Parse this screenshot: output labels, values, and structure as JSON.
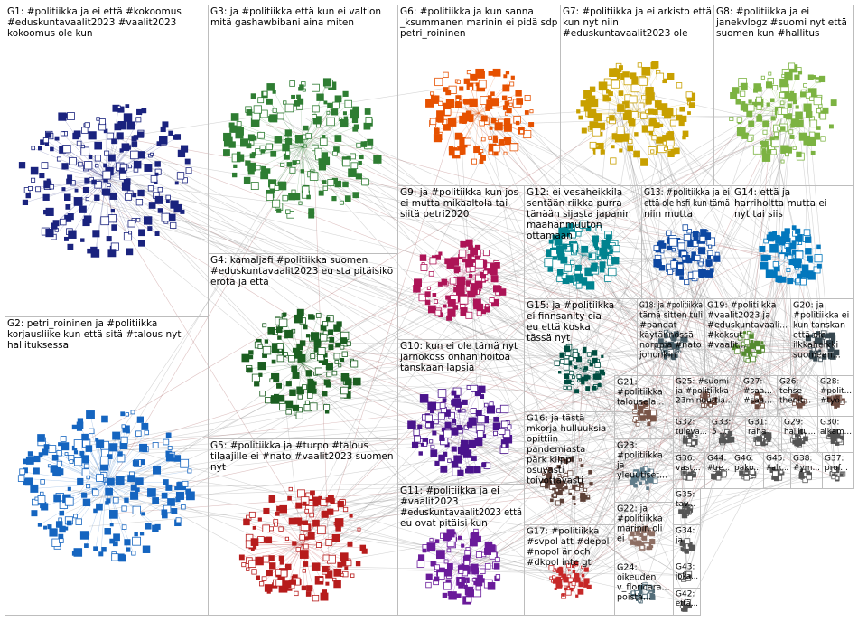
{
  "groups": [
    {
      "lines": [
        "G1: #politiikka ja ei että #kokoomus",
        "#eduskuntavaalit2023 #vaalit2023",
        "kokoomus ole kun"
      ]
    },
    {
      "lines": [
        "G2: petri_roininen ja #politiikka",
        "korjausliike kun että sitä #talous nyt",
        "hallituksessa"
      ]
    },
    {
      "lines": [
        "G3: ja #politiikka että kun ei valtion",
        "mitä gashawbibani aina miten"
      ]
    },
    {
      "lines": [
        "G4: kamaljafi #politiikka suomen",
        "#eduskuntavaalit2023 eu sta pitäisikö",
        "erota ja että"
      ]
    },
    {
      "lines": [
        "G5: #politiikka ja #turpo #talous",
        "tilaajille ei #nato #vaalit2023 suomen",
        "nyt"
      ]
    },
    {
      "lines": [
        "G6: #politiikka ja kun sanna",
        "_ksummanen marinin ei pidä sdp",
        "petri_roininen"
      ]
    },
    {
      "lines": [
        "G7: #politiikka ja ei arkisto että",
        "kun nyt niin",
        "#eduskuntavaalit2023 ole"
      ]
    },
    {
      "lines": [
        "G8: #politiikka ja ei",
        "janekvlogz #suomi nyt että",
        "suomen kun #hallitus"
      ]
    },
    {
      "lines": [
        "G9: ja #politiikka kun jos",
        "ei mutta mikaaltola tai",
        "siitä petri2020"
      ]
    },
    {
      "lines": [
        "G10: kun ei ole tämä nyt",
        "jarnokoss onhan hoitoa",
        "tanskaan lapsia"
      ]
    },
    {
      "lines": [
        "G11: #politiikka ja ei",
        "#vaalit2023",
        "#eduskuntavaalit2023 että",
        "eu ovat pitäisi kun"
      ]
    },
    {
      "lines": [
        "G12: ei vesaheikkila",
        "sentään riikka purra",
        "tänään sijasta japanin",
        "maahanmuuton",
        "ottamaan"
      ]
    },
    {
      "lines": [
        "G13: #politiikka ja ei",
        "että ole hsfi kun tämä",
        "niin mutta"
      ]
    },
    {
      "lines": [
        "G14: että ja",
        "harriholtta mutta ei",
        "nyt tai siis"
      ]
    },
    {
      "lines": [
        "G15: ja #politiikka",
        "ei finnsanity cia",
        "eu että koska",
        "tässä nyt"
      ]
    },
    {
      "lines": [
        "G16: ja tästä",
        "mkorja hulluuksia",
        "opittiin",
        "pandemiasta",
        "pärk klippi",
        "osuvasti",
        "toivottavasti"
      ]
    },
    {
      "lines": [
        "G17: #politiikka",
        "#svpol att #deppl",
        "#nopol är och",
        "#dkpol inte gt"
      ]
    },
    {
      "lines": [
        "G18: ja #politiikka",
        "tämä sitten tuli",
        "#pandat",
        "käytännössä",
        "norppia #nato",
        "johonkin"
      ]
    },
    {
      "lines": [
        "G19: #politiikka",
        "#vaalit2023 ja",
        "#eduskuntavaali...",
        "#koksut",
        "#vaalit..."
      ]
    },
    {
      "lines": [
        "G20: ja",
        "#politiikka ei",
        "kun tanskan",
        "että ole",
        "ilkkaheikki",
        "suomeen..."
      ]
    },
    {
      "lines": [
        "G21:",
        "#politiikka",
        "talousela..."
      ]
    },
    {
      "lines": [
        "G23:",
        "#politiikka",
        "ja",
        "yleuutiset..."
      ]
    },
    {
      "lines": [
        "G22: ja",
        "#politiikka",
        "marinin oli",
        "ei"
      ]
    },
    {
      "lines": [
        "G24:",
        "oikeuden",
        "v_floricara...",
        "poista..."
      ]
    },
    {
      "lines": [
        "G25: #suomi",
        "ja #politiikka",
        "23minuuttia..."
      ]
    },
    {
      "lines": [
        "G27:",
        "#saa...",
        "#saa..."
      ]
    },
    {
      "lines": [
        "G26:",
        "tehse",
        "thenit..."
      ]
    },
    {
      "lines": [
        "G28:",
        "#polit...",
        "#työ..."
      ]
    },
    {
      "lines": [
        "G32:",
        "tuleva..."
      ]
    },
    {
      "lines": [
        "G33:",
        "5 ..."
      ]
    },
    {
      "lines": [
        "G31:",
        "raha"
      ]
    },
    {
      "lines": [
        "G29:",
        "hallitu..."
      ]
    },
    {
      "lines": [
        "G30:",
        "alkam..."
      ]
    },
    {
      "lines": [
        "G36:",
        "vast..."
      ]
    },
    {
      "lines": [
        "G44:",
        "#tre..."
      ]
    },
    {
      "lines": [
        "G46:",
        "pako..."
      ]
    },
    {
      "lines": [
        "G45:",
        "#alk..."
      ]
    },
    {
      "lines": [
        "G38:",
        "#ym..."
      ]
    },
    {
      "lines": [
        "G37:",
        "prof..."
      ]
    },
    {
      "lines": [
        "G35:",
        "tav..."
      ]
    },
    {
      "lines": [
        "G34:",
        "ja"
      ]
    },
    {
      "lines": [
        "G43:",
        "joka..."
      ]
    },
    {
      "lines": [
        "G42:",
        "että..."
      ]
    }
  ]
}
